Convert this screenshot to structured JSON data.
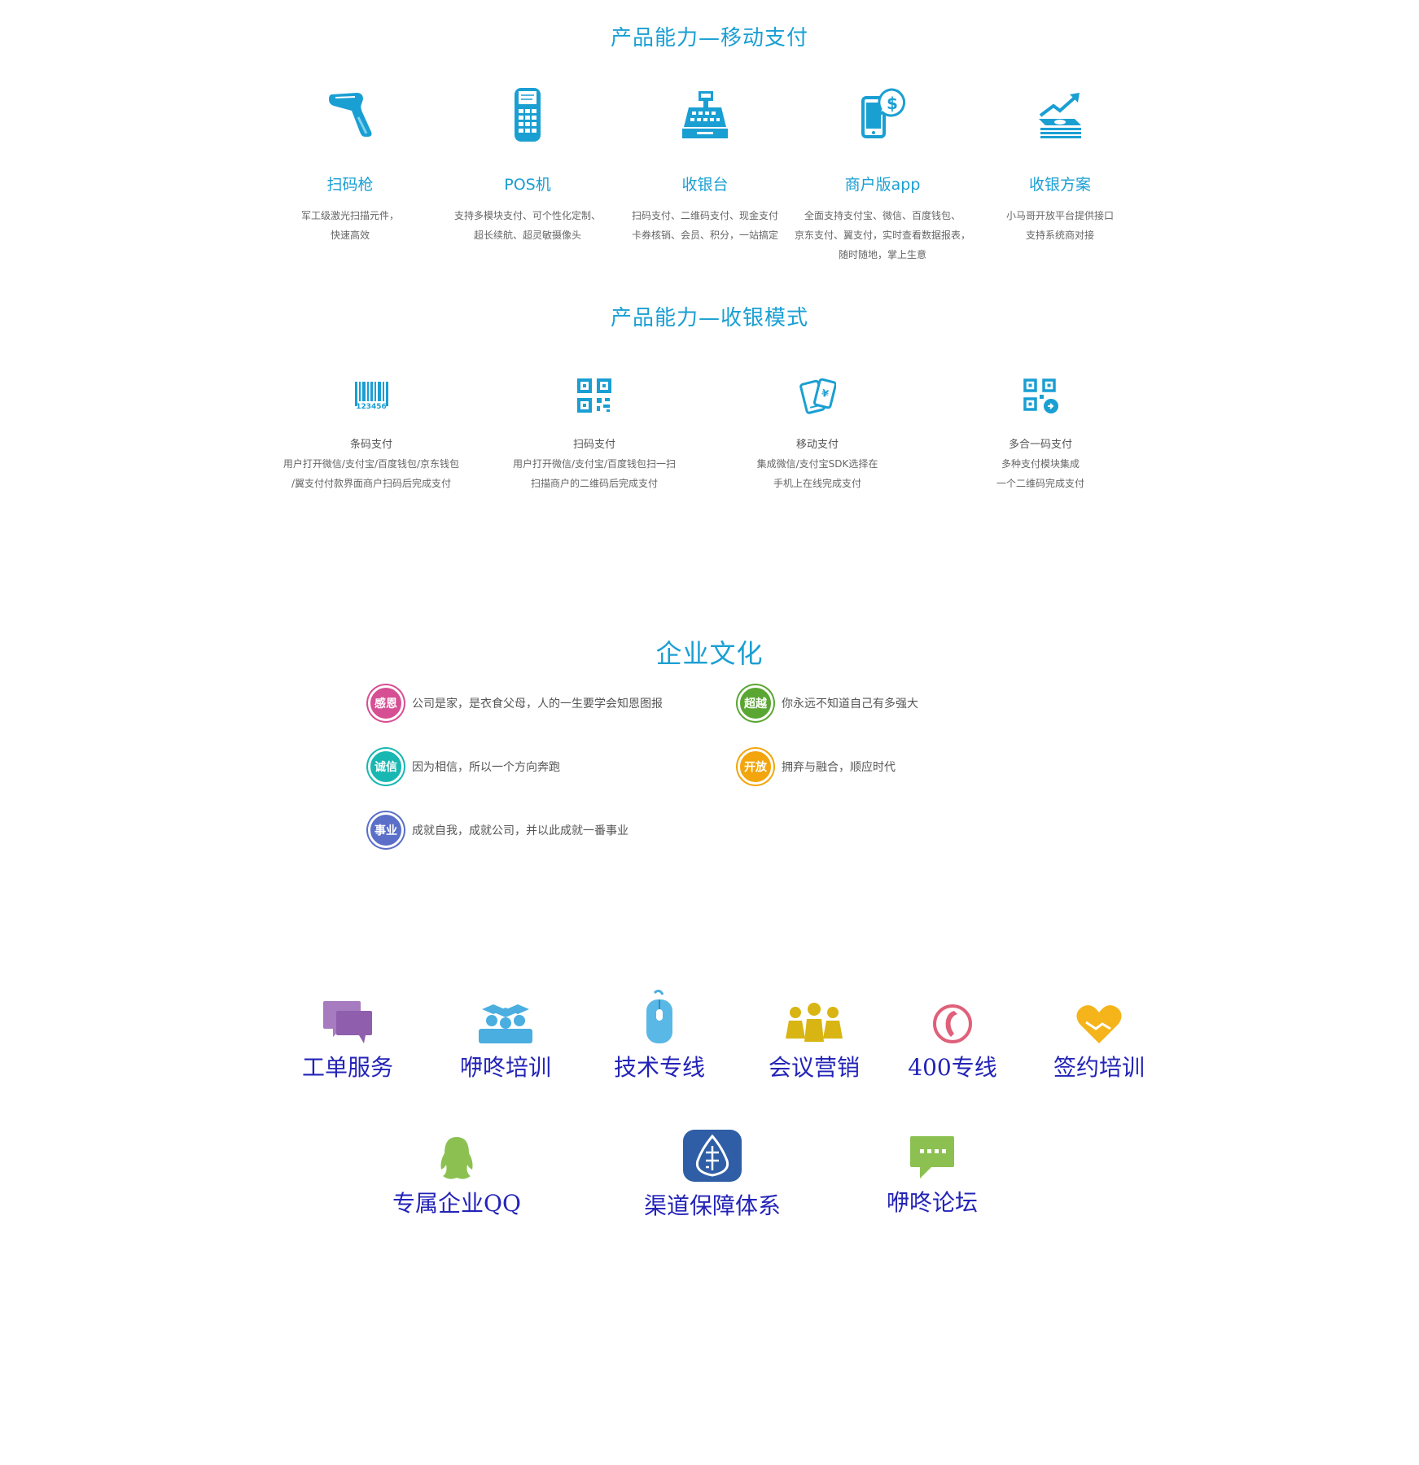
{
  "mobile_payment": {
    "title": "产品能力—移动支付",
    "items": [
      {
        "name": "扫码枪",
        "desc": [
          "军工级激光扫描元件，",
          "快速高效"
        ],
        "icon": "barcode-scanner-icon"
      },
      {
        "name": "POS机",
        "desc": [
          "支持多模块支付、可个性化定制、",
          "超长续航、超灵敏摄像头"
        ],
        "icon": "pos-terminal-icon"
      },
      {
        "name": "收银台",
        "desc": [
          "扫码支付、二维码支付、现金支付",
          "卡券核销、会员、积分，一站搞定"
        ],
        "icon": "cash-register-icon"
      },
      {
        "name": "商户版app",
        "desc": [
          "全面支持支付宝、微信、百度钱包、",
          "京东支付、翼支付，实时查看数据报表，",
          "随时随地，掌上生意"
        ],
        "icon": "phone-dollar-icon"
      },
      {
        "name": "收银方案",
        "desc": [
          "小马哥开放平台提供接口",
          "支持系统商对接"
        ],
        "icon": "growth-money-icon"
      }
    ]
  },
  "cashier_modes": {
    "title": "产品能力—收银模式",
    "items": [
      {
        "name": "条码支付",
        "desc": [
          "用户打开微信/支付宝/百度钱包/京东钱包",
          "/翼支付付款界面商户扫码后完成支付"
        ],
        "icon": "barcode-icon"
      },
      {
        "name": "扫码支付",
        "desc": [
          "用户打开微信/支付宝/百度钱包扫一扫",
          "扫描商户的二维码后完成支付"
        ],
        "icon": "qr-code-icon"
      },
      {
        "name": "移动支付",
        "desc": [
          "集成微信/支付宝SDK选择在",
          "手机上在线完成支付"
        ],
        "icon": "mobile-pay-icon"
      },
      {
        "name": "多合一码支付",
        "desc": [
          "多种支付模块集成",
          "一个二维码完成支付"
        ],
        "icon": "multi-qr-icon"
      }
    ],
    "barcode_digits": "123456"
  },
  "culture": {
    "title": "企业文化",
    "items": [
      {
        "badge": "感恩",
        "text": "公司是家，是衣食父母，人的一生要学会知恩图报",
        "color": "#d64f93"
      },
      {
        "badge": "超越",
        "text": "你永远不知道自己有多强大",
        "color": "#5aa632"
      },
      {
        "badge": "诚信",
        "text": "因为相信，所以一个方向奔跑",
        "color": "#18b7b2"
      },
      {
        "badge": "开放",
        "text": "拥弃与融合，顺应时代",
        "color": "#f2a50c"
      },
      {
        "badge": "事业",
        "text": "成就自我，成就公司，并以此成就一番事业",
        "color": "#5b6fc8"
      }
    ]
  },
  "services": {
    "row1": [
      "工单服务",
      "咿咚培训",
      "技术专线",
      "会议营销",
      "400专线",
      "签约培训"
    ],
    "row2": [
      "专属企业QQ",
      "渠道保障体系",
      "咿咚论坛"
    ]
  },
  "colors": {
    "accent": "#1a9fd3",
    "service_label": "#2323b8"
  }
}
